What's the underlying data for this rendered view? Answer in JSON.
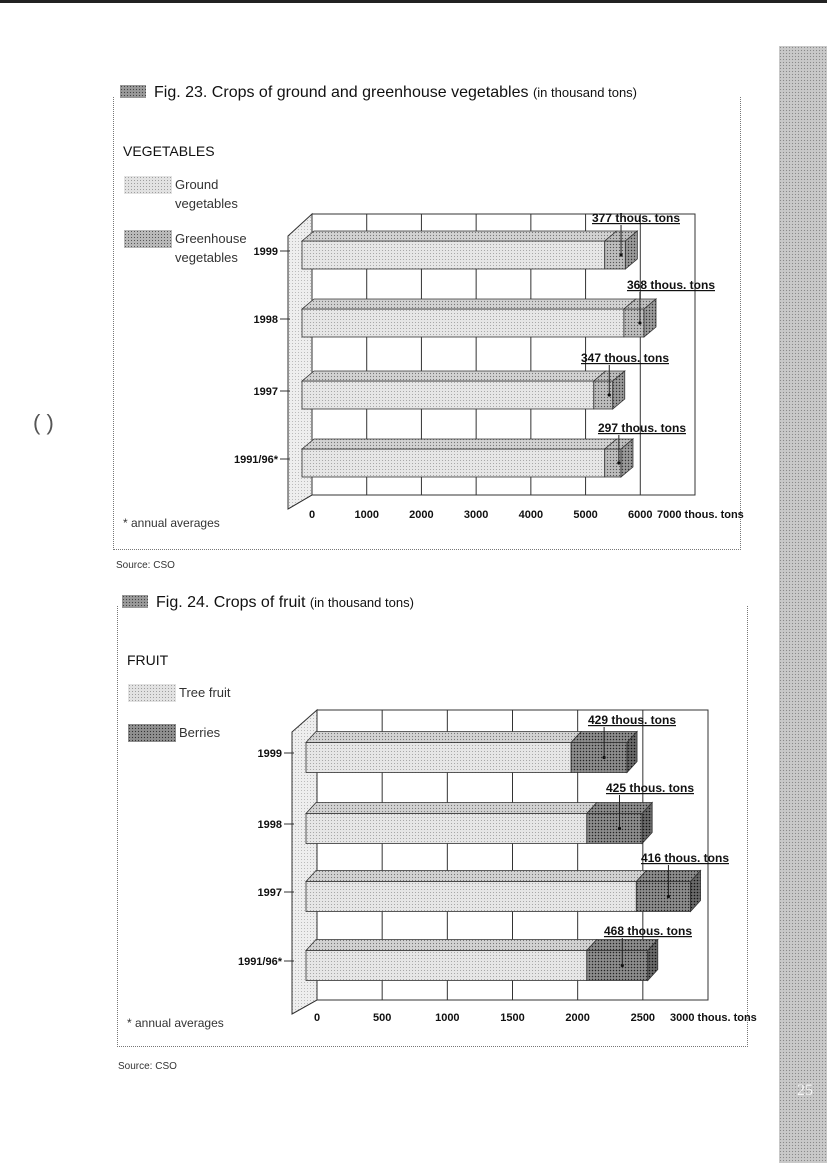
{
  "page_number": "25",
  "chart_data": [
    {
      "type": "bar",
      "orientation": "horizontal",
      "stacked": true,
      "three_d": true,
      "fig_label": "Fig. 23. Crops of ground and greenhouse vegetables",
      "fig_unit": "(in thousand tons)",
      "category_title": "VEGETABLES",
      "categories": [
        "1999",
        "1998",
        "1997",
        "1991/96*"
      ],
      "series": [
        {
          "name": "Ground vegetables",
          "values": [
            5350,
            5700,
            5150,
            5350
          ]
        },
        {
          "name": "Greenhouse vegetables",
          "values": [
            377,
            368,
            347,
            297
          ]
        }
      ],
      "annotations": [
        "377 thous. tons",
        "368 thous. tons",
        "347 thous. tons",
        "297 thous. tons"
      ],
      "xlim": [
        0,
        7000
      ],
      "xticks": [
        "0",
        "1000",
        "2000",
        "3000",
        "4000",
        "5000",
        "6000",
        "7000 thous. tons"
      ],
      "grid": true,
      "footnote": "* annual averages",
      "source": "Source: CSO",
      "legend_position": "left",
      "colors": {
        "ground": "#d9d9d9",
        "greenhouse": "#b5b5b5"
      }
    },
    {
      "type": "bar",
      "orientation": "horizontal",
      "stacked": true,
      "three_d": true,
      "fig_label": "Fig. 24. Crops of fruit",
      "fig_unit": "(in thousand tons)",
      "category_title": "FRUIT",
      "categories": [
        "1999",
        "1998",
        "1997",
        "1991/96*"
      ],
      "series": [
        {
          "name": "Tree fruit",
          "values": [
            1950,
            2070,
            2450,
            2070
          ]
        },
        {
          "name": "Berries",
          "values": [
            429,
            425,
            416,
            468
          ]
        }
      ],
      "annotations": [
        "429 thous. tons",
        "425 thous. tons",
        "416 thous. tons",
        "468 thous. tons"
      ],
      "xlim": [
        0,
        3000
      ],
      "xticks": [
        "0",
        "500",
        "1000",
        "1500",
        "2000",
        "2500",
        "3000 thous. tons"
      ],
      "grid": true,
      "footnote": "* annual averages",
      "source": "Source: CSO",
      "legend_position": "left",
      "colors": {
        "tree": "#e4e4e4",
        "berries": "#888888"
      }
    }
  ]
}
